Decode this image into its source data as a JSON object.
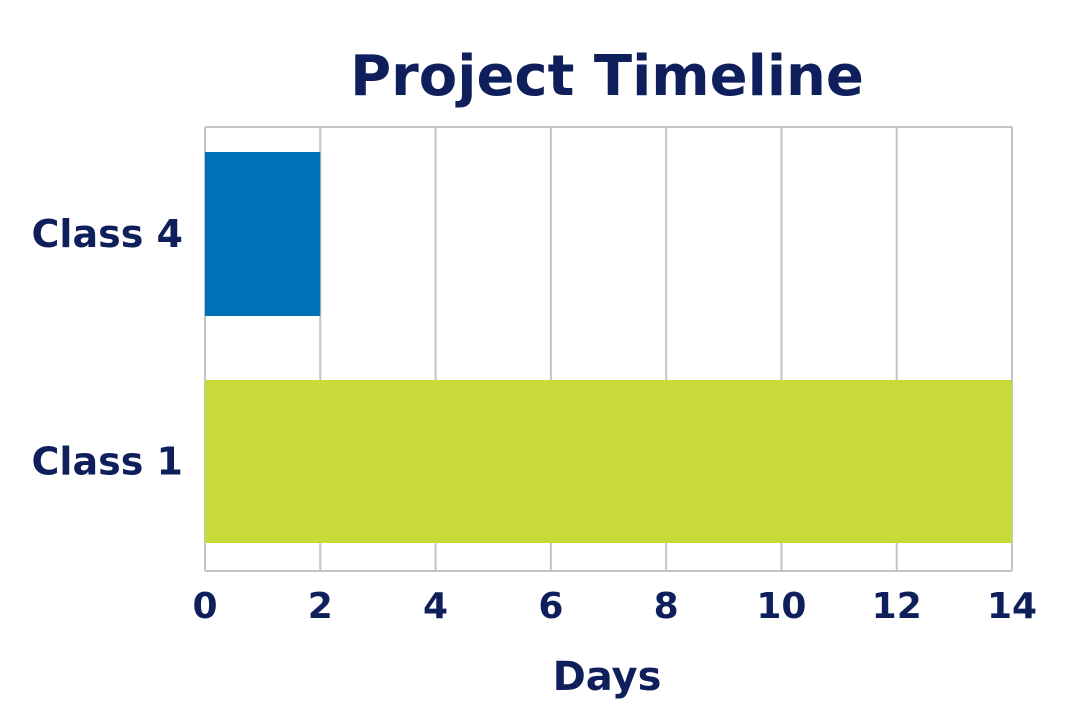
{
  "chart_data": {
    "type": "bar",
    "orientation": "horizontal",
    "title": "Project Timeline",
    "xlabel": "Days",
    "ylabel": "",
    "categories": [
      "Class 4",
      "Class 1"
    ],
    "values": [
      2,
      14
    ],
    "bar_colors": [
      "#0070b8",
      "#c8d93a"
    ],
    "xlim": [
      0,
      14
    ],
    "xticks": [
      "0",
      "2",
      "4",
      "6",
      "8",
      "10",
      "12",
      "14"
    ],
    "grid": "vertical",
    "legend": "none",
    "text_color": "#0f1f5c",
    "grid_color": "#c4c4c4"
  }
}
